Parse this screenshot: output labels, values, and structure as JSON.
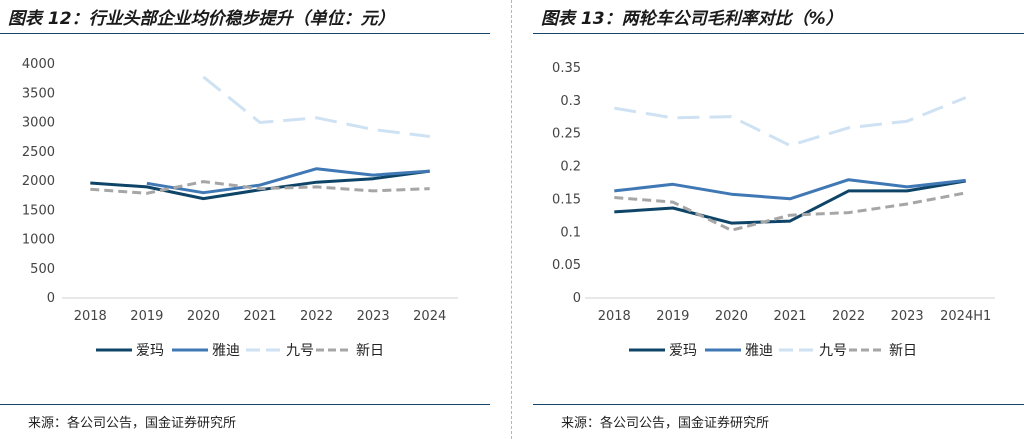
{
  "left_panel": {
    "title": "图表 12：行业头部企业均价稳步提升（单位：元）",
    "source": "来源：各公司公告，国金证券研究所"
  },
  "right_panel": {
    "title": "图表 13：两轮车公司毛利率对比（%）",
    "source": "来源：各公司公告，国金证券研究所"
  },
  "colors": {
    "aima": "#0d4467",
    "yadea": "#3f78b4",
    "ninebot": "#cfe2f3",
    "sunra": "#a6a6a6",
    "axis": "#d0d0d0",
    "rule": "#15456b"
  },
  "chart_data": [
    {
      "type": "line",
      "title": "图表 12：行业头部企业均价稳步提升（单位：元）",
      "categories": [
        "2018",
        "2019",
        "2020",
        "2021",
        "2022",
        "2023",
        "2024"
      ],
      "ylim": [
        0,
        4000
      ],
      "yticks": [
        "0",
        "500",
        "1000",
        "1500",
        "2000",
        "2500",
        "3000",
        "3500",
        "4000"
      ],
      "grid": false,
      "legend_position": "bottom",
      "series": [
        {
          "name": "爱玛",
          "color_key": "aima",
          "dash": "solid",
          "values": [
            1965,
            1900,
            1700,
            1850,
            1980,
            2040,
            2170
          ]
        },
        {
          "name": "雅迪",
          "color_key": "yadea",
          "dash": "solid",
          "values": [
            null,
            1960,
            1800,
            1930,
            2210,
            2100,
            2170
          ]
        },
        {
          "name": "九号",
          "color_key": "ninebot",
          "dash": "dashed",
          "values": [
            null,
            null,
            3780,
            3000,
            3080,
            2880,
            2760
          ]
        },
        {
          "name": "新日",
          "color_key": "sunra",
          "dash": "dashed",
          "values": [
            1860,
            1790,
            1990,
            1870,
            1900,
            1830,
            1870
          ]
        }
      ]
    },
    {
      "type": "line",
      "title": "图表 13：两轮车公司毛利率对比（%）",
      "categories": [
        "2018",
        "2019",
        "2020",
        "2021",
        "2022",
        "2023",
        "2024H1"
      ],
      "ylim": [
        0,
        0.35
      ],
      "yticks": [
        "0",
        "0.05",
        "0.1",
        "0.15",
        "0.2",
        "0.25",
        "0.3",
        "0.35"
      ],
      "grid": false,
      "legend_position": "bottom",
      "series": [
        {
          "name": "爱玛",
          "color_key": "aima",
          "dash": "solid",
          "values": [
            0.131,
            0.137,
            0.114,
            0.117,
            0.163,
            0.163,
            0.178
          ]
        },
        {
          "name": "雅迪",
          "color_key": "yadea",
          "dash": "solid",
          "values": [
            0.163,
            0.173,
            0.158,
            0.151,
            0.18,
            0.169,
            0.179
          ]
        },
        {
          "name": "九号",
          "color_key": "ninebot",
          "dash": "dashed",
          "values": [
            0.289,
            0.274,
            0.276,
            0.232,
            0.259,
            0.269,
            0.305
          ]
        },
        {
          "name": "新日",
          "color_key": "sunra",
          "dash": "dashed",
          "values": [
            0.153,
            0.146,
            0.103,
            0.126,
            0.13,
            0.143,
            0.16
          ]
        }
      ]
    }
  ]
}
